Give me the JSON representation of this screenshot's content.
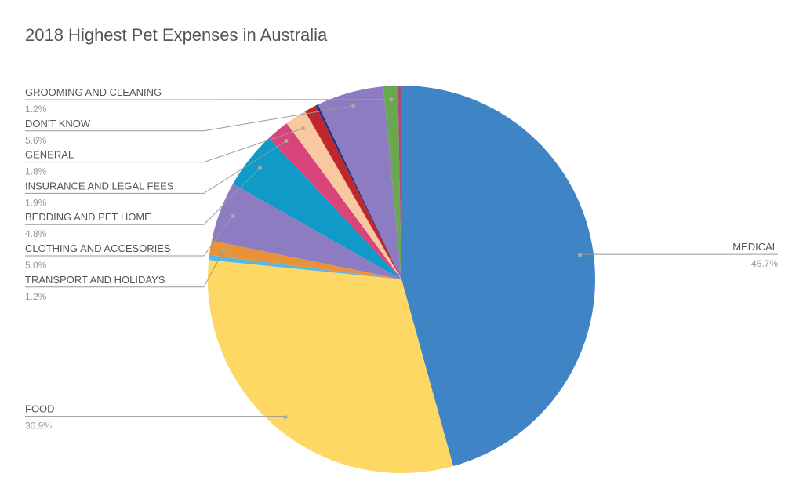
{
  "chart_data": {
    "type": "pie",
    "title": "2018 Highest Pet Expenses in Australia",
    "categories": [
      "MEDICAL",
      "FOOD",
      null,
      "TRANSPORT AND HOLIDAYS",
      "CLOTHING AND ACCESORIES",
      "BEDDING AND PET HOME",
      "INSURANCE AND LEGAL FEES",
      "GENERAL",
      null,
      null,
      "DON'T KNOW",
      "GROOMING AND CLEANING",
      null
    ],
    "values": [
      45.7,
      30.9,
      0.4,
      1.2,
      5.0,
      4.8,
      1.9,
      1.8,
      1.0,
      0.2,
      5.6,
      1.2,
      0.3
    ],
    "value_labels": [
      "45.7%",
      "30.9%",
      null,
      "1.2%",
      "5.0%",
      "4.8%",
      "1.9%",
      "1.8%",
      null,
      null,
      "5.6%",
      "1.2%",
      null
    ],
    "colors": [
      "#3f85c6",
      "#fdd865",
      "#53b8e5",
      "#e8923a",
      "#8e7cc3",
      "#0f9ac7",
      "#d9457b",
      "#f8c9a0",
      "#c0272d",
      "#1f2f88",
      "#8e7cc3",
      "#6aa84f",
      "#a64d79"
    ]
  }
}
